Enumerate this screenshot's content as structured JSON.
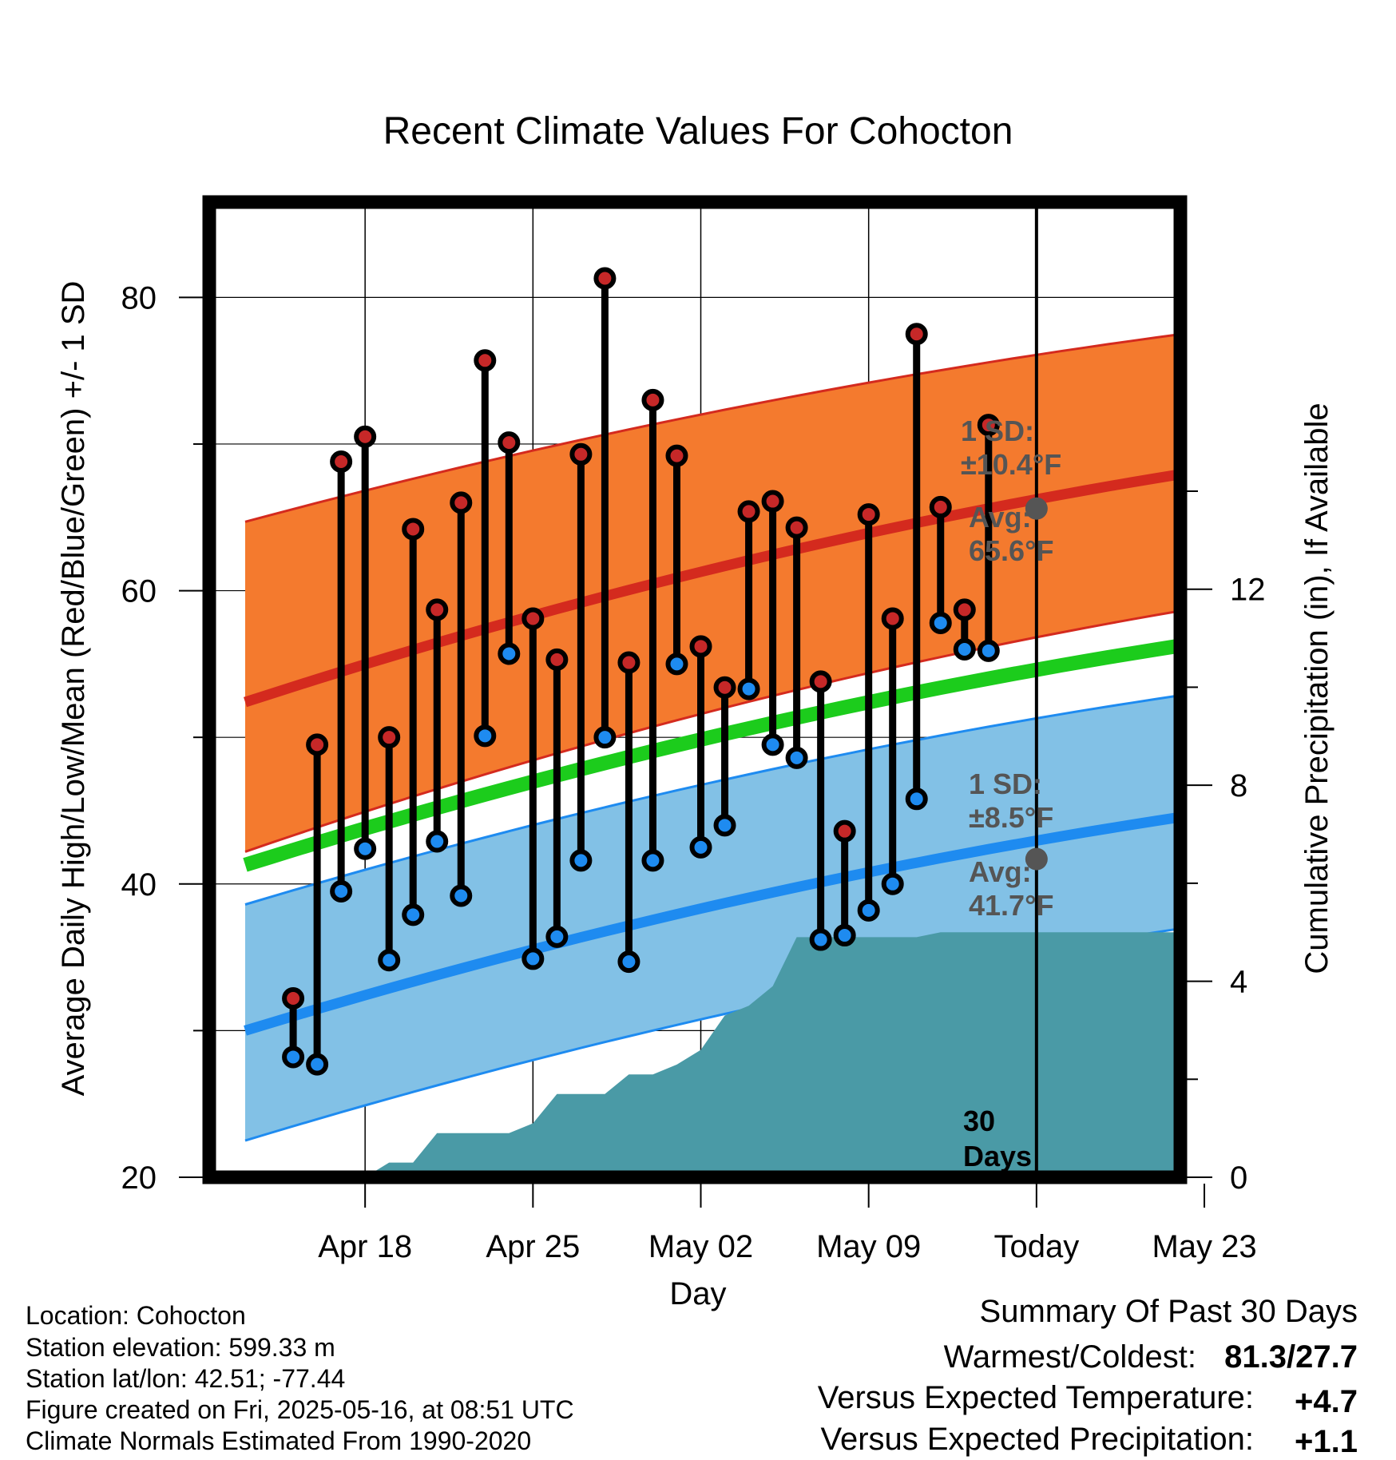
{
  "title": "Recent Climate Values For Cohocton",
  "colors": {
    "high_band": "#f47a2e",
    "high_band_edge": "#d42a1e",
    "high_mean": "#d42a1e",
    "low_band": "#82c1e6",
    "low_band_edge": "#1e8bf0",
    "low_mean": "#1e8bf0",
    "mean_line": "#1ccc1c",
    "precip": "#4a9aa6",
    "high_dot": "#c62828",
    "low_dot": "#1e8bf0",
    "today_dot": "#555555",
    "annotation": "#555555",
    "pos_temp": "#d42a1e",
    "pos_precip": "#1ccc1c"
  },
  "chart_data": {
    "type": "line",
    "title": "Recent Climate Values For Cohocton",
    "xlabel": "Day",
    "ylabel": "Average Daily High/Low/Mean (Red/Blue/Green) +/- 1 SD",
    "y2label": "Cumulative Precipitation (in), If Available",
    "ylim": [
      20,
      86.5
    ],
    "y2lim": [
      0,
      19.9
    ],
    "xlim": [
      -3.5,
      37
    ],
    "yticks": [
      "20",
      "40",
      "60",
      "80"
    ],
    "y2ticks": [
      "0",
      "4",
      "8",
      "12"
    ],
    "xticks": [
      {
        "day": 3,
        "label": "Apr 18"
      },
      {
        "day": 10,
        "label": "Apr 25"
      },
      {
        "day": 17,
        "label": "May 02"
      },
      {
        "day": 24,
        "label": "May 09"
      },
      {
        "day": 31,
        "label": "Today"
      },
      {
        "day": 38,
        "label": "May 23"
      }
    ],
    "days": [
      "Apr 16",
      "Apr 17",
      "Apr 18",
      "Apr 19",
      "Apr 20",
      "Apr 21",
      "Apr 22",
      "Apr 23",
      "Apr 24",
      "Apr 25",
      "Apr 26",
      "Apr 27",
      "Apr 28",
      "Apr 29",
      "Apr 30",
      "May 01",
      "May 02",
      "May 03",
      "May 04",
      "May 05",
      "May 06",
      "May 07",
      "May 08",
      "May 09",
      "May 10",
      "May 11",
      "May 12",
      "May 13",
      "May 14",
      "May 15"
    ],
    "highs": [
      32.2,
      49.5,
      68.8,
      70.5,
      50.0,
      64.2,
      58.7,
      66.0,
      75.7,
      70.1,
      58.1,
      55.3,
      69.3,
      81.3,
      55.1,
      73.0,
      69.2,
      56.2,
      53.4,
      65.4,
      66.1,
      64.3,
      53.8,
      43.6,
      65.2,
      58.1,
      77.5,
      65.7,
      58.7,
      71.3
    ],
    "lows": [
      28.2,
      27.7,
      39.5,
      42.4,
      34.8,
      37.9,
      42.9,
      39.2,
      50.1,
      55.7,
      34.9,
      36.4,
      41.6,
      50.0,
      34.7,
      41.6,
      55.0,
      42.5,
      44.0,
      53.3,
      49.5,
      48.6,
      36.2,
      36.5,
      38.2,
      40.0,
      45.8,
      57.8,
      56.0,
      55.9
    ],
    "normal_days": [
      -2,
      38
    ],
    "normal_high": [
      52.4,
      68.2
    ],
    "normal_high_sd_upper": [
      64.7,
      77.7
    ],
    "normal_high_sd_lower": [
      42.2,
      58.9
    ],
    "normal_low": [
      30.0,
      44.8
    ],
    "normal_low_sd_upper": [
      38.6,
      53.1
    ],
    "normal_low_sd_lower": [
      22.5,
      37.2
    ],
    "normal_mean": [
      41.3,
      56.5
    ],
    "precip_days": [
      -2,
      0,
      1,
      2,
      3,
      4,
      5,
      6,
      7,
      8,
      9,
      10,
      11,
      12,
      13,
      14,
      15,
      16,
      17,
      18,
      19,
      20,
      21,
      22,
      23,
      24,
      25,
      26,
      27,
      28,
      29,
      30,
      38
    ],
    "precip_cum": [
      0,
      0,
      0,
      0,
      0.0,
      0.3,
      0.3,
      0.9,
      0.9,
      0.9,
      0.9,
      1.1,
      1.7,
      1.7,
      1.7,
      2.1,
      2.1,
      2.3,
      2.6,
      3.3,
      3.5,
      3.9,
      4.9,
      4.9,
      4.9,
      4.9,
      4.9,
      4.9,
      5.0,
      5.0,
      5.0,
      5.0,
      5.0
    ],
    "annotations": {
      "high_sd_1": "1 SD:",
      "high_sd_2": "±10.4°F",
      "high_avg_1": "Avg:",
      "high_avg_2": "65.6°F",
      "low_sd_1": "1 SD:",
      "low_sd_2": "±8.5°F",
      "low_avg_1": "Avg:",
      "low_avg_2": "41.7°F",
      "days_1": "30",
      "days_2": "Days"
    },
    "today_high_avg": 65.6,
    "today_low_avg": 41.7
  },
  "info": {
    "location": "Location: Cohocton",
    "elevation": "Station elevation: 599.33 m",
    "latlon": "Station lat/lon: 42.51; -77.44",
    "created": "Figure created on Fri, 2025-05-16, at 08:51 UTC",
    "normals": "Climate Normals Estimated From 1990-2020"
  },
  "summary": {
    "heading": "Summary Of Past 30 Days",
    "warm_cold_label": "Warmest/Coldest:",
    "warm_cold_value": "81.3/27.7",
    "temp_label": "Versus Expected Temperature:",
    "temp_value": "+4.7",
    "precip_label": "Versus Expected Precipitation:",
    "precip_value": "+1.1"
  }
}
